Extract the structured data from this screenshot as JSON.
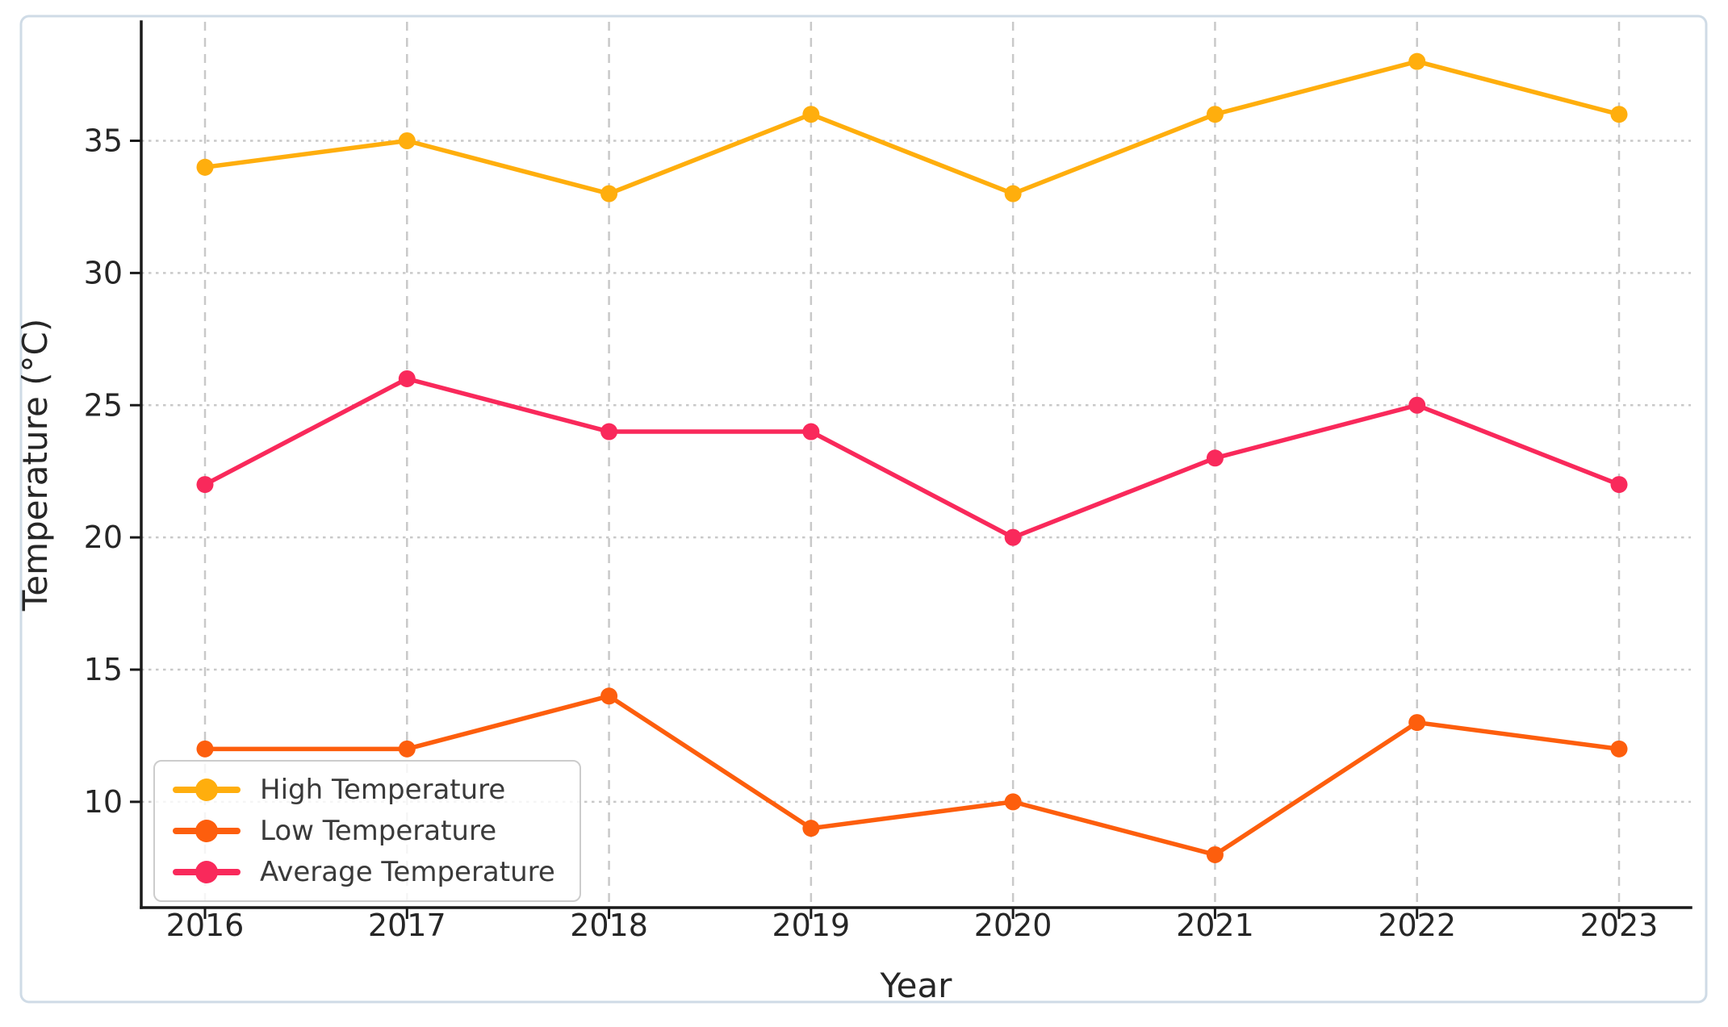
{
  "figure": {
    "background": "#ffffff",
    "border_color": "#cfdbe6"
  },
  "chart_data": {
    "type": "line",
    "title": "",
    "xlabel": "Year",
    "ylabel": "Temperature (°C)",
    "categories": [
      2016,
      2017,
      2018,
      2019,
      2020,
      2021,
      2022,
      2023
    ],
    "x_tick_labels": [
      "2016",
      "2017",
      "2018",
      "2019",
      "2020",
      "2021",
      "2022",
      "2023"
    ],
    "yticks": [
      10,
      15,
      20,
      25,
      30,
      35
    ],
    "y_tick_labels": [
      "10",
      "15",
      "20",
      "25",
      "30",
      "35"
    ],
    "ylim": [
      6,
      39.5
    ],
    "grid": true,
    "grid_color": "#c9c9c9",
    "axis_color": "#1a1a1a",
    "tick_label_color": "#262626",
    "legend": {
      "position": "lower left",
      "border_color": "#cccccc",
      "background": "rgba(255,255,255,0.82)",
      "text_color": "#3a3a3a"
    },
    "series": [
      {
        "name": "High Temperature",
        "color": "#ffae0d",
        "values": [
          34,
          35,
          33,
          36,
          33,
          36,
          38,
          36
        ]
      },
      {
        "name": "Low Temperature",
        "color": "#fd5e0d",
        "values": [
          12,
          12,
          14,
          9,
          10,
          8,
          13,
          12
        ]
      },
      {
        "name": "Average Temperature",
        "color": "#f9295b",
        "values": [
          22,
          26,
          24,
          24,
          20,
          23,
          25,
          22
        ]
      }
    ]
  }
}
